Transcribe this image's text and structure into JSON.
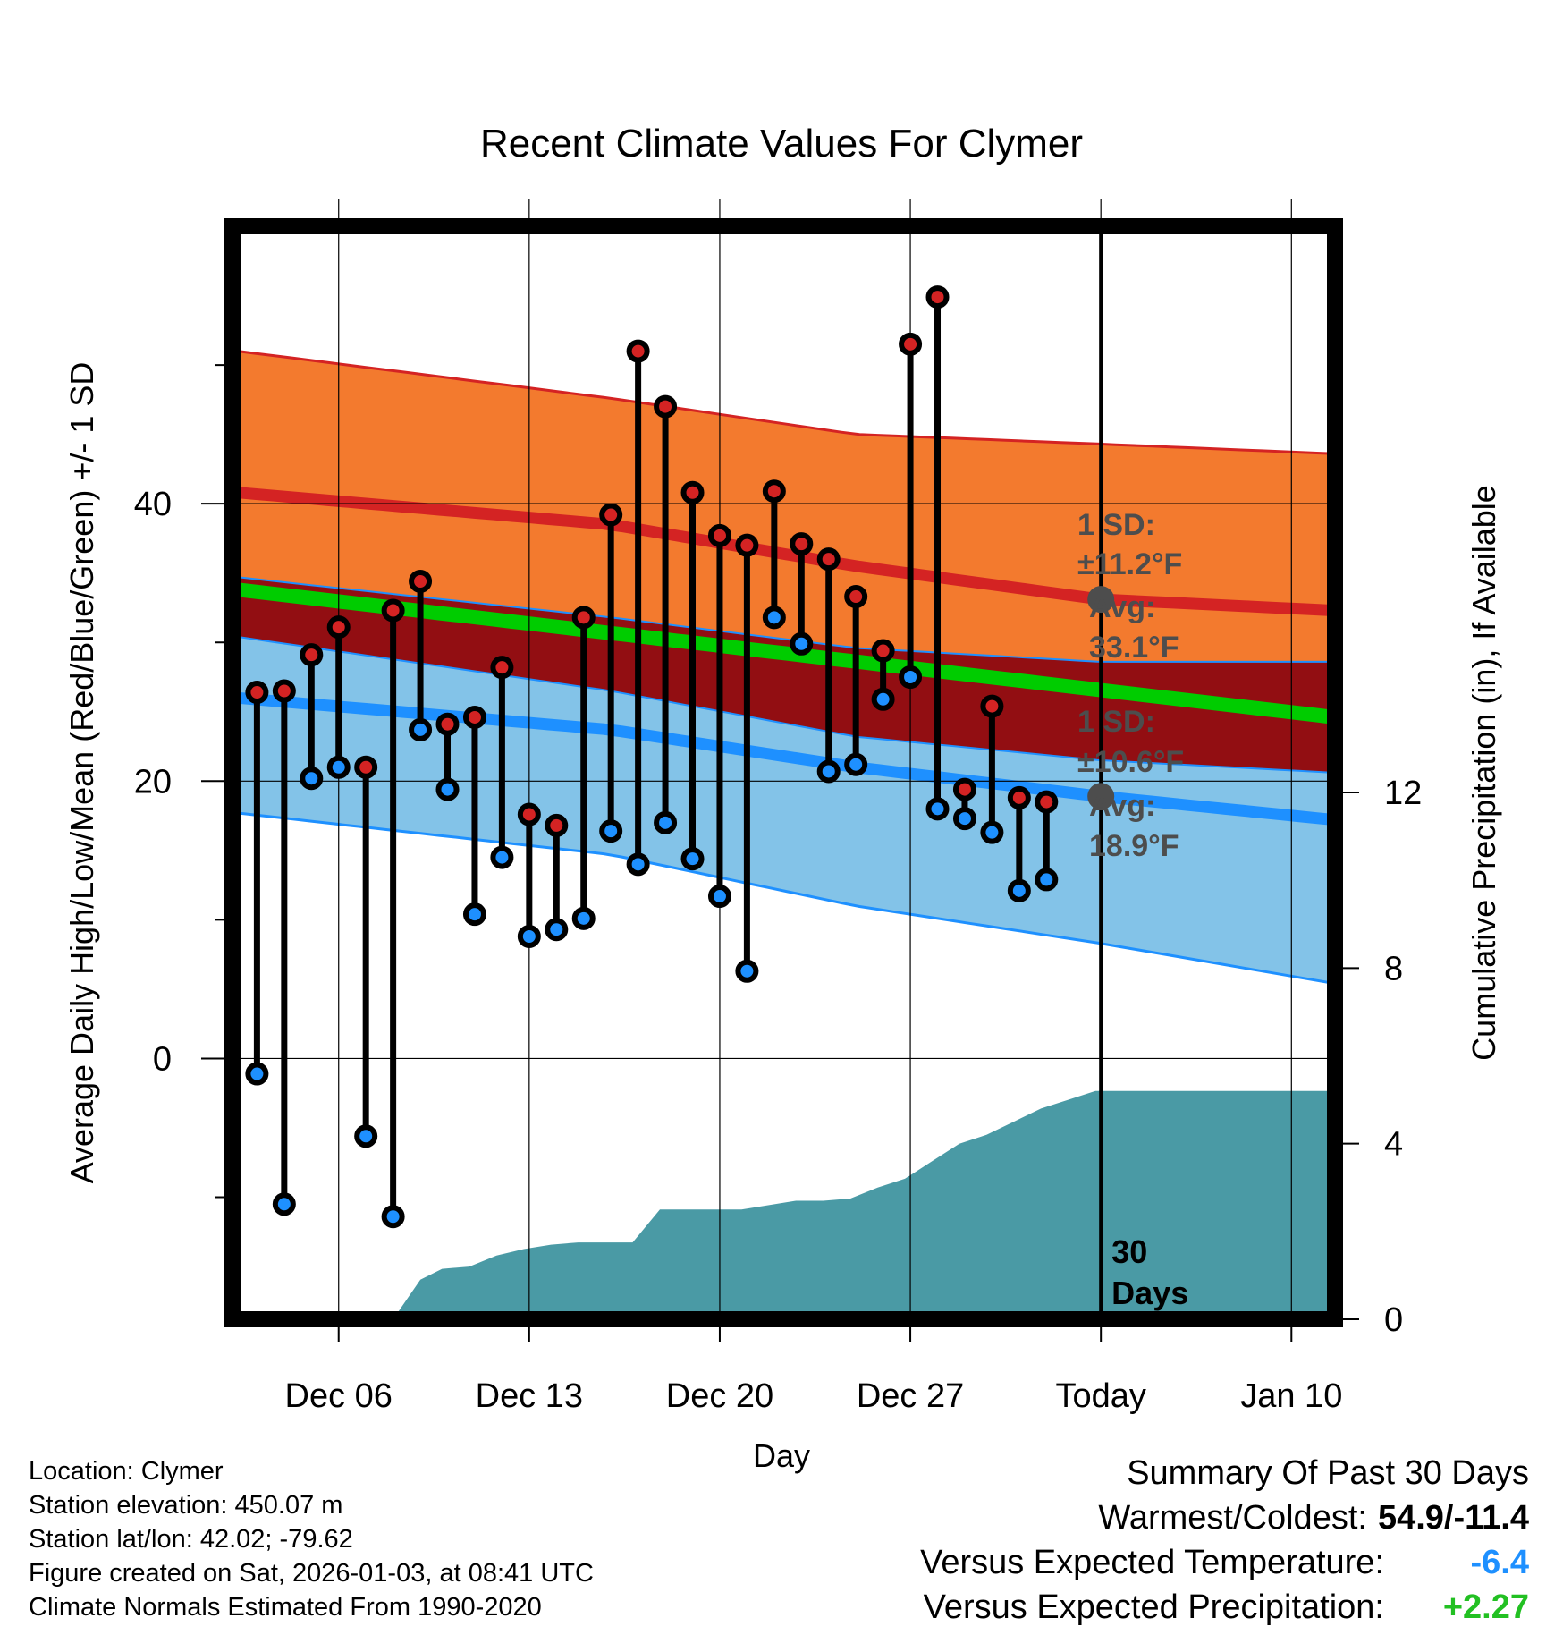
{
  "chart_data": {
    "type": "line",
    "title": "Recent Climate Values For Clymer",
    "xlabel": "Day",
    "ylabel_left": "Average Daily High/Low/Mean (Red/Blue/Green) +/- 1 SD",
    "ylabel_right": "Cumulative Precipitation (in), If Available",
    "x_tick_labels": [
      "Dec 06",
      "Dec 13",
      "Dec 20",
      "Dec 27",
      "Today",
      "Jan 10"
    ],
    "x_tick_days": [
      3,
      10,
      17,
      24,
      31,
      38
    ],
    "xlim": [
      -0.9,
      39.6
    ],
    "left_ticks": [
      "0",
      "20",
      "40"
    ],
    "left_tick_values": [
      0,
      20,
      40
    ],
    "ylim_left": [
      -18.8,
      60
    ],
    "right_ticks": [
      "0",
      "4",
      "8",
      "12"
    ],
    "right_tick_values": [
      0,
      4,
      8,
      12
    ],
    "today_marker_label": "30\nDays",
    "daily_high": [
      26.4,
      26.5,
      29.1,
      31.1,
      21.0,
      32.3,
      34.4,
      24.1,
      24.6,
      28.2,
      17.6,
      16.8,
      31.8,
      39.2,
      51.0,
      47.0,
      40.8,
      37.7,
      37.0,
      40.9,
      37.1,
      36.0,
      33.3,
      29.4,
      51.5,
      54.9,
      19.4,
      25.4,
      18.8,
      18.5
    ],
    "daily_low": [
      -1.1,
      -10.5,
      20.2,
      21.0,
      -5.6,
      -11.4,
      23.7,
      19.4,
      10.4,
      14.5,
      8.8,
      9.3,
      10.1,
      16.4,
      14.0,
      17.0,
      14.4,
      11.7,
      6.3,
      31.8,
      29.9,
      20.7,
      21.2,
      25.9,
      27.5,
      18.0,
      17.3,
      16.3,
      12.1,
      12.9
    ],
    "normal_high": {
      "day": [
        -0.7,
        13,
        22,
        31,
        39.6
      ],
      "mean": [
        40.8,
        38.5,
        35.5,
        33.1,
        32.3
      ],
      "upper": [
        51.0,
        47.6,
        45.0,
        44.3,
        43.6
      ],
      "lower": [
        34.7,
        31.8,
        29.6,
        28.6,
        28.6
      ]
    },
    "normal_mean": {
      "day": [
        -0.7,
        39.6
      ],
      "mean": [
        33.8,
        24.6
      ]
    },
    "normal_low": {
      "day": [
        -0.7,
        13,
        22,
        31,
        39.6
      ],
      "mean": [
        26.0,
        23.7,
        21.0,
        18.9,
        17.2
      ],
      "upper": [
        30.4,
        26.5,
        23.2,
        21.5,
        20.6
      ],
      "lower": [
        17.7,
        14.7,
        11.0,
        8.3,
        5.4
      ]
    },
    "cumulative_precip": {
      "day": [
        5,
        6,
        6.8,
        7.8,
        8.8,
        9.8,
        10.8,
        11.8,
        13.8,
        14.8,
        17.8,
        18.8,
        19.8,
        20.8,
        21.8,
        22.8,
        23.8,
        24.8,
        25.8,
        26.8,
        27.8,
        28.8,
        29.8,
        30.8,
        39.6
      ],
      "value": [
        0,
        0.9,
        1.15,
        1.2,
        1.45,
        1.6,
        1.7,
        1.75,
        1.75,
        2.5,
        2.5,
        2.6,
        2.7,
        2.7,
        2.75,
        3.0,
        3.2,
        3.6,
        4.0,
        4.2,
        4.5,
        4.8,
        5.0,
        5.2,
        5.2
      ]
    },
    "annotations": {
      "high_sd": "1 SD:",
      "high_sd_val": "±11.2°F",
      "high_avg": "Avg:",
      "high_avg_val": "33.1°F",
      "low_sd": "1 SD:",
      "low_sd_val": "±10.6°F",
      "low_avg": "Avg:",
      "low_avg_val": "18.9°F"
    },
    "colors": {
      "high_band": "#f37a2e",
      "high_line": "#d42323",
      "low_band": "#83c3e8",
      "low_line": "#1e90ff",
      "overlap_band": "#920e12",
      "mean_line": "#00cc00",
      "precip_fill": "#4a9aa5",
      "high_marker": "#d42323",
      "low_marker": "#1e90ff",
      "today_point": "#4d4d4d"
    }
  },
  "info": {
    "location": "Location: Clymer",
    "elevation": "Station elevation: 450.07 m",
    "latlon": "Station lat/lon: 42.02; -79.62",
    "created": "Figure created on Sat, 2026-01-03, at 08:41 UTC",
    "normals": "Climate Normals Estimated From 1990-2020"
  },
  "summary": {
    "title": "Summary Of Past 30 Days",
    "warm_cold_label": "Warmest/Coldest:",
    "warm_cold_value": "54.9/-11.4",
    "temp_label": "Versus Expected Temperature:",
    "temp_value": "-6.4",
    "precip_label": "Versus Expected Precipitation:",
    "precip_value": "+2.27"
  }
}
